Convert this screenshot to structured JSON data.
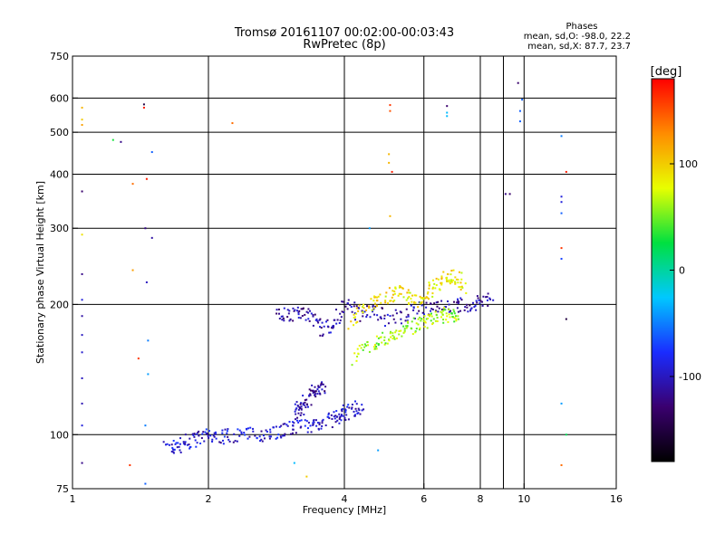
{
  "chart_data": {
    "type": "scatter",
    "title": "Tromsø 20161107 00:02:00-00:03:43",
    "subtitle": "RwPretec (8p)",
    "info": {
      "heading": "Phases",
      "line1": "mean, sd,O:  -98.0, 22.2",
      "line2": "mean, sd,X:   87.7, 23.7"
    },
    "xlabel": "Frequency [MHz]",
    "ylabel": "Stationary phase Virtual Height [km]",
    "x_scale": "log2",
    "y_scale": "log",
    "xlim": [
      1,
      16
    ],
    "ylim": [
      75,
      750
    ],
    "x_ticks": [
      1,
      2,
      4,
      6,
      8,
      10,
      16
    ],
    "x_tick_labels": [
      "1",
      "2",
      "4",
      "6",
      "8",
      "10",
      "16"
    ],
    "y_ticks": [
      75,
      100,
      200,
      300,
      400,
      500,
      600,
      750
    ],
    "y_tick_labels": [
      "75",
      "100",
      "200",
      "300",
      "400",
      "500",
      "600",
      "750"
    ],
    "x_gridlines": [
      2,
      4,
      6,
      8,
      10
    ],
    "y_gridlines": [
      100,
      200,
      300,
      400,
      500,
      600
    ],
    "x_minor_gridlines": [
      9
    ],
    "grid": true,
    "colorbar": {
      "unit": "[deg]",
      "range": [
        -180,
        180
      ],
      "ticks": [
        100,
        0,
        -100
      ],
      "tick_labels": [
        "100",
        "0",
        "-100"
      ],
      "colors": [
        "#000000",
        "#3a006f",
        "#1a2cff",
        "#00c8ff",
        "#00e040",
        "#e8ff00",
        "#ff8c00",
        "#ff0000"
      ]
    },
    "clusters": [
      {
        "name_ref": "o_trace_lower",
        "x": [
          1.62,
          1.7,
          1.8,
          1.9,
          2.0,
          2.15,
          2.3,
          2.5,
          2.7,
          2.9,
          3.1,
          3.3,
          3.5,
          3.7,
          3.9,
          4.0,
          4.2,
          4.4
        ],
        "y": [
          93,
          94,
          96,
          98,
          99,
          99,
          100,
          100,
          101,
          102,
          104,
          105,
          106,
          108,
          110,
          112,
          114,
          117
        ],
        "phase": -95
      },
      {
        "name_ref": "o_trace_lower_upper",
        "x": [
          3.1,
          3.2,
          3.3,
          3.4,
          3.5,
          3.6
        ],
        "y": [
          112,
          115,
          120,
          125,
          128,
          130
        ],
        "phase": -110
      },
      {
        "name_ref": "o_trace_upper",
        "x": [
          2.85,
          3.0,
          3.2,
          3.4,
          3.6,
          3.8,
          4.0,
          4.3,
          4.6,
          5.0,
          5.5,
          6.0,
          6.5,
          7.0,
          7.5,
          8.0,
          8.5
        ],
        "y": [
          188,
          190,
          192,
          186,
          175,
          180,
          200,
          190,
          195,
          185,
          190,
          195,
          200,
          198,
          200,
          202,
          205
        ],
        "phase": -110
      },
      {
        "name_ref": "x_trace_upper",
        "x": [
          4.1,
          4.4,
          4.7,
          5.0,
          5.3,
          5.6,
          5.9,
          6.2,
          6.5,
          6.8,
          7.1,
          7.4
        ],
        "y": [
          180,
          195,
          205,
          210,
          215,
          208,
          200,
          215,
          225,
          235,
          230,
          220
        ],
        "phase": 90
      },
      {
        "name_ref": "x_trace_mid",
        "x": [
          4.2,
          4.5,
          4.8,
          5.1,
          5.4,
          5.7,
          6.0,
          6.3,
          6.6,
          6.9,
          7.2
        ],
        "y": [
          150,
          160,
          165,
          170,
          175,
          178,
          182,
          185,
          188,
          190,
          185
        ],
        "phase": 60
      }
    ],
    "scattered_points": [
      {
        "x": 1.05,
        "y": 570,
        "phase": 110
      },
      {
        "x": 1.05,
        "y": 535,
        "phase": 100
      },
      {
        "x": 1.05,
        "y": 520,
        "phase": 120
      },
      {
        "x": 1.05,
        "y": 365,
        "phase": -130
      },
      {
        "x": 1.05,
        "y": 290,
        "phase": 90
      },
      {
        "x": 1.05,
        "y": 235,
        "phase": -120
      },
      {
        "x": 1.05,
        "y": 205,
        "phase": -90
      },
      {
        "x": 1.05,
        "y": 188,
        "phase": -110
      },
      {
        "x": 1.05,
        "y": 170,
        "phase": -100
      },
      {
        "x": 1.05,
        "y": 155,
        "phase": -95
      },
      {
        "x": 1.05,
        "y": 135,
        "phase": -100
      },
      {
        "x": 1.05,
        "y": 118,
        "phase": -105
      },
      {
        "x": 1.05,
        "y": 105,
        "phase": -90
      },
      {
        "x": 1.05,
        "y": 86,
        "phase": -120
      },
      {
        "x": 1.23,
        "y": 480,
        "phase": 30
      },
      {
        "x": 1.28,
        "y": 475,
        "phase": -120
      },
      {
        "x": 1.36,
        "y": 380,
        "phase": 140
      },
      {
        "x": 1.36,
        "y": 240,
        "phase": 120
      },
      {
        "x": 1.4,
        "y": 150,
        "phase": 160
      },
      {
        "x": 1.34,
        "y": 85,
        "phase": 160
      },
      {
        "x": 1.44,
        "y": 580,
        "phase": -150
      },
      {
        "x": 1.44,
        "y": 570,
        "phase": 170
      },
      {
        "x": 1.46,
        "y": 390,
        "phase": 170
      },
      {
        "x": 1.45,
        "y": 300,
        "phase": -120
      },
      {
        "x": 1.46,
        "y": 225,
        "phase": -100
      },
      {
        "x": 1.47,
        "y": 165,
        "phase": -50
      },
      {
        "x": 1.47,
        "y": 138,
        "phase": -40
      },
      {
        "x": 1.45,
        "y": 105,
        "phase": -50
      },
      {
        "x": 1.45,
        "y": 77,
        "phase": -60
      },
      {
        "x": 1.5,
        "y": 450,
        "phase": -60
      },
      {
        "x": 1.5,
        "y": 285,
        "phase": -110
      },
      {
        "x": 2.26,
        "y": 525,
        "phase": 140
      },
      {
        "x": 3.1,
        "y": 86,
        "phase": -30
      },
      {
        "x": 3.3,
        "y": 80,
        "phase": 100
      },
      {
        "x": 4.75,
        "y": 92,
        "phase": -40
      },
      {
        "x": 4.55,
        "y": 300,
        "phase": -40
      },
      {
        "x": 5.05,
        "y": 578,
        "phase": 160
      },
      {
        "x": 5.05,
        "y": 560,
        "phase": 150
      },
      {
        "x": 5.02,
        "y": 445,
        "phase": 110
      },
      {
        "x": 5.02,
        "y": 425,
        "phase": 110
      },
      {
        "x": 5.05,
        "y": 320,
        "phase": 110
      },
      {
        "x": 5.1,
        "y": 405,
        "phase": 170
      },
      {
        "x": 6.75,
        "y": 575,
        "phase": -130
      },
      {
        "x": 6.75,
        "y": 555,
        "phase": -30
      },
      {
        "x": 6.75,
        "y": 545,
        "phase": -30
      },
      {
        "x": 9.1,
        "y": 360,
        "phase": -120
      },
      {
        "x": 9.3,
        "y": 360,
        "phase": -130
      },
      {
        "x": 9.7,
        "y": 650,
        "phase": -130
      },
      {
        "x": 9.9,
        "y": 595,
        "phase": -60
      },
      {
        "x": 9.8,
        "y": 560,
        "phase": -60
      },
      {
        "x": 9.8,
        "y": 530,
        "phase": -60
      },
      {
        "x": 12.1,
        "y": 490,
        "phase": -50
      },
      {
        "x": 12.1,
        "y": 355,
        "phase": -90
      },
      {
        "x": 12.1,
        "y": 345,
        "phase": -90
      },
      {
        "x": 12.1,
        "y": 325,
        "phase": -60
      },
      {
        "x": 12.1,
        "y": 270,
        "phase": 160
      },
      {
        "x": 12.1,
        "y": 255,
        "phase": -70
      },
      {
        "x": 12.1,
        "y": 118,
        "phase": -40
      },
      {
        "x": 12.1,
        "y": 85,
        "phase": 140
      },
      {
        "x": 12.4,
        "y": 405,
        "phase": 170
      },
      {
        "x": 12.4,
        "y": 185,
        "phase": -150
      },
      {
        "x": 12.4,
        "y": 100,
        "phase": 20
      }
    ]
  }
}
